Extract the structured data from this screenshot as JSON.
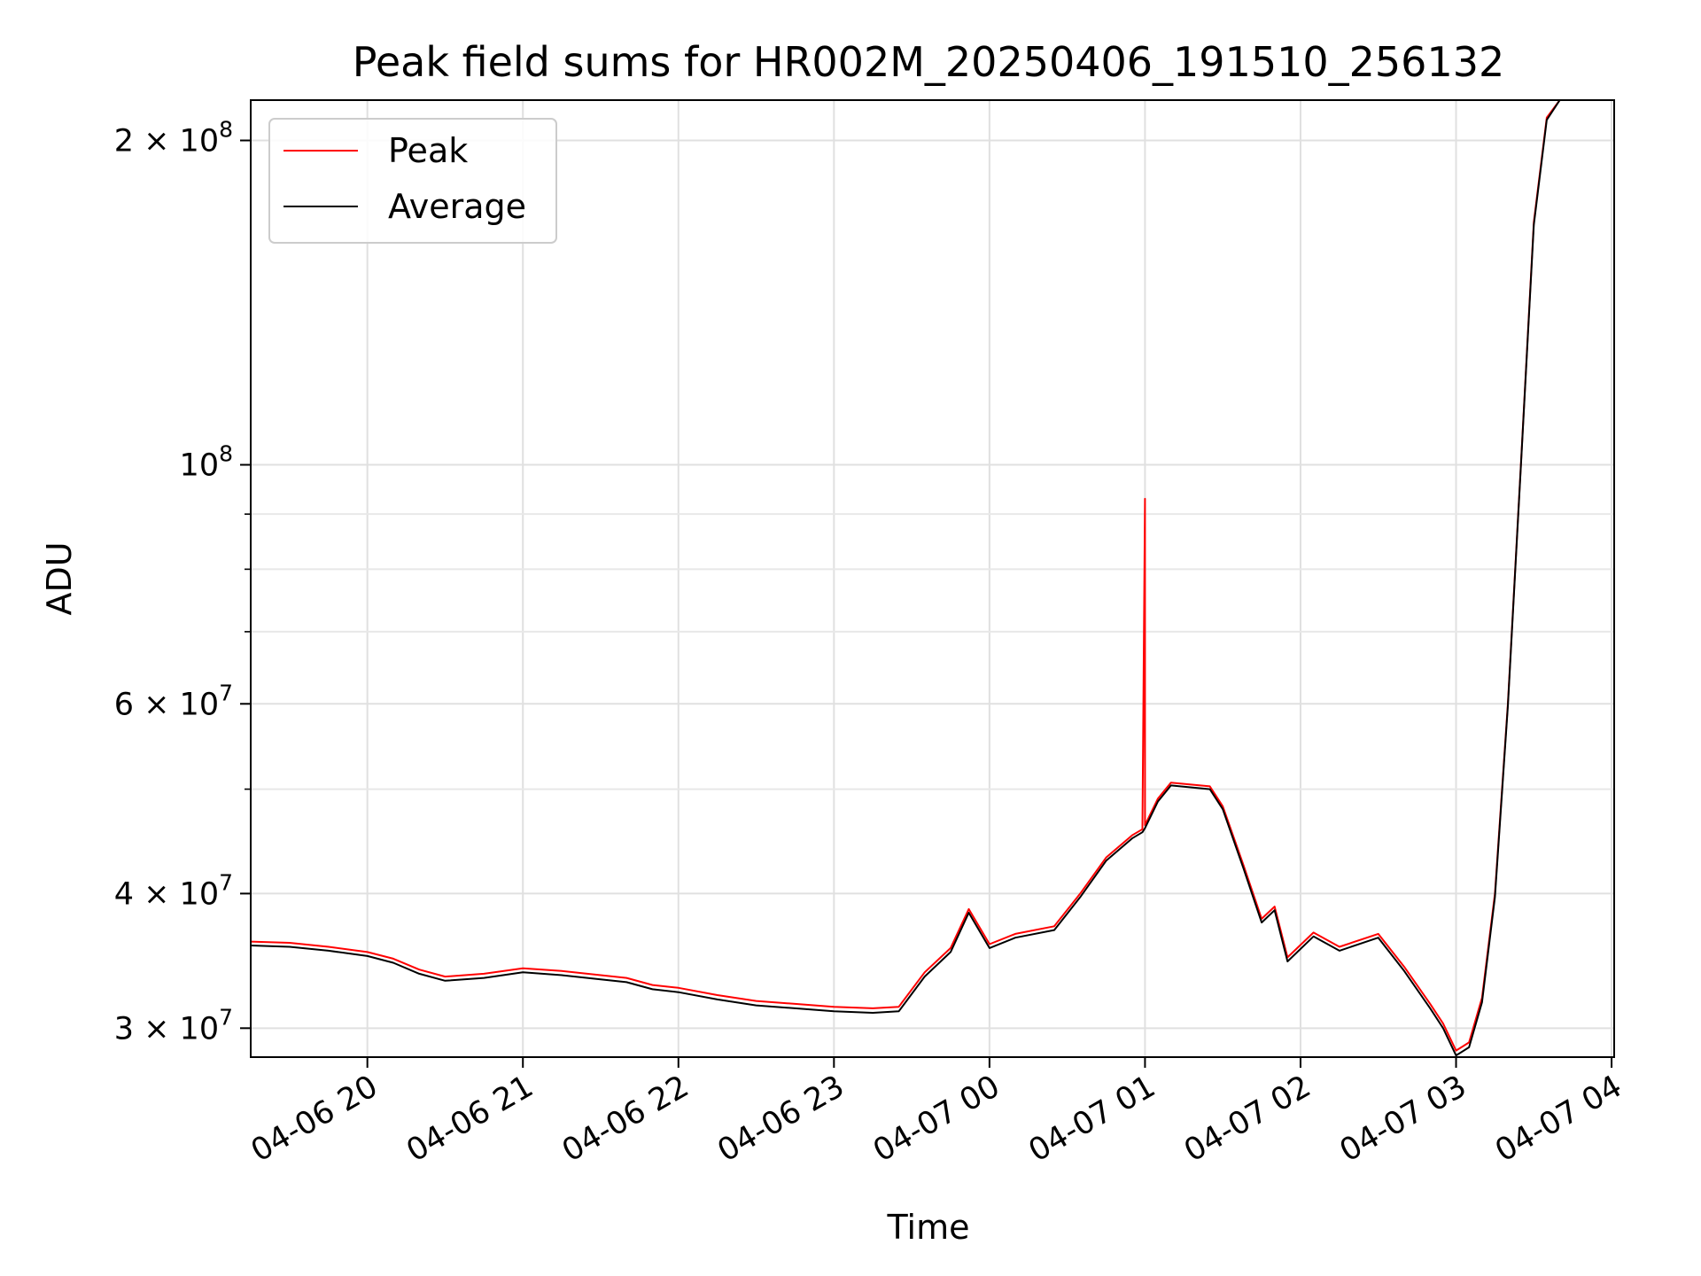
{
  "chart_data": {
    "type": "line",
    "title": "Peak field sums for HR002M_20250406_191510_256132",
    "xlabel": "Time",
    "ylabel": "ADU",
    "yscale": "log",
    "ylim": [
      28200000,
      218000000
    ],
    "xlim": [
      "2025-04-06 19:15",
      "2025-04-07 04:01"
    ],
    "grid": true,
    "legend_position": "upper-left",
    "x_ticks": [
      {
        "t": "2025-04-06 20:00",
        "label": "04-06 20"
      },
      {
        "t": "2025-04-06 21:00",
        "label": "04-06 21"
      },
      {
        "t": "2025-04-06 22:00",
        "label": "04-06 22"
      },
      {
        "t": "2025-04-06 23:00",
        "label": "04-06 23"
      },
      {
        "t": "2025-04-07 00:00",
        "label": "04-07 00"
      },
      {
        "t": "2025-04-07 01:00",
        "label": "04-07 01"
      },
      {
        "t": "2025-04-07 02:00",
        "label": "04-07 02"
      },
      {
        "t": "2025-04-07 03:00",
        "label": "04-07 03"
      },
      {
        "t": "2025-04-07 04:00",
        "label": "04-07 04"
      }
    ],
    "y_ticks": [
      {
        "value": 30000000,
        "mantissa": "3",
        "exp": "7"
      },
      {
        "value": 40000000,
        "mantissa": "4",
        "exp": "7"
      },
      {
        "value": 60000000,
        "mantissa": "6",
        "exp": "7"
      },
      {
        "value": 100000000,
        "mantissa": "",
        "exp": "8"
      },
      {
        "value": 200000000,
        "mantissa": "2",
        "exp": "8"
      }
    ],
    "y_minor_ticks": [
      50000000,
      70000000,
      80000000,
      90000000
    ],
    "series": [
      {
        "name": "Peak",
        "color": "#ff0000",
        "points": [
          [
            "2025-04-06 19:15",
            36100000
          ],
          [
            "2025-04-06 19:30",
            36000000
          ],
          [
            "2025-04-06 19:45",
            35700000
          ],
          [
            "2025-04-06 20:00",
            35300000
          ],
          [
            "2025-04-06 20:10",
            34800000
          ],
          [
            "2025-04-06 20:20",
            34000000
          ],
          [
            "2025-04-06 20:30",
            33500000
          ],
          [
            "2025-04-06 20:45",
            33700000
          ],
          [
            "2025-04-06 21:00",
            34100000
          ],
          [
            "2025-04-06 21:15",
            33900000
          ],
          [
            "2025-04-06 21:30",
            33600000
          ],
          [
            "2025-04-06 21:40",
            33400000
          ],
          [
            "2025-04-06 21:50",
            32900000
          ],
          [
            "2025-04-06 22:00",
            32700000
          ],
          [
            "2025-04-06 22:15",
            32200000
          ],
          [
            "2025-04-06 22:30",
            31800000
          ],
          [
            "2025-04-06 22:45",
            31600000
          ],
          [
            "2025-04-06 23:00",
            31400000
          ],
          [
            "2025-04-06 23:15",
            31300000
          ],
          [
            "2025-04-06 23:25",
            31400000
          ],
          [
            "2025-04-06 23:35",
            33800000
          ],
          [
            "2025-04-06 23:45",
            35600000
          ],
          [
            "2025-04-06 23:52",
            38700000
          ],
          [
            "2025-04-07 00:00",
            35900000
          ],
          [
            "2025-04-07 00:10",
            36700000
          ],
          [
            "2025-04-07 00:25",
            37300000
          ],
          [
            "2025-04-07 00:35",
            40000000
          ],
          [
            "2025-04-07 00:45",
            43200000
          ],
          [
            "2025-04-07 00:55",
            45300000
          ],
          [
            "2025-04-07 00:59",
            45900000
          ],
          [
            "2025-04-07 01:00",
            93000000
          ],
          [
            "2025-04-07 01:00",
            46300000
          ],
          [
            "2025-04-07 01:05",
            49000000
          ],
          [
            "2025-04-07 01:10",
            50700000
          ],
          [
            "2025-04-07 01:25",
            50300000
          ],
          [
            "2025-04-07 01:30",
            48200000
          ],
          [
            "2025-04-07 01:38",
            42500000
          ],
          [
            "2025-04-07 01:45",
            37900000
          ],
          [
            "2025-04-07 01:50",
            38900000
          ],
          [
            "2025-04-07 01:55",
            34900000
          ],
          [
            "2025-04-07 02:05",
            36800000
          ],
          [
            "2025-04-07 02:15",
            35700000
          ],
          [
            "2025-04-07 02:30",
            36700000
          ],
          [
            "2025-04-07 02:40",
            34200000
          ],
          [
            "2025-04-07 02:50",
            31600000
          ],
          [
            "2025-04-07 02:55",
            30300000
          ],
          [
            "2025-04-07 03:00",
            28600000
          ],
          [
            "2025-04-07 03:05",
            29100000
          ],
          [
            "2025-04-07 03:10",
            32000000
          ],
          [
            "2025-04-07 03:15",
            40000000
          ],
          [
            "2025-04-07 03:20",
            60000000
          ],
          [
            "2025-04-07 03:25",
            100000000
          ],
          [
            "2025-04-07 03:30",
            168000000
          ],
          [
            "2025-04-07 03:35",
            210000000
          ],
          [
            "2025-04-07 03:40",
            218000000
          ]
        ]
      },
      {
        "name": "Average",
        "color": "#000000",
        "points": [
          [
            "2025-04-06 19:15",
            35800000
          ],
          [
            "2025-04-06 19:30",
            35700000
          ],
          [
            "2025-04-06 19:45",
            35400000
          ],
          [
            "2025-04-06 20:00",
            35000000
          ],
          [
            "2025-04-06 20:10",
            34500000
          ],
          [
            "2025-04-06 20:20",
            33700000
          ],
          [
            "2025-04-06 20:30",
            33200000
          ],
          [
            "2025-04-06 20:45",
            33400000
          ],
          [
            "2025-04-06 21:00",
            33800000
          ],
          [
            "2025-04-06 21:15",
            33600000
          ],
          [
            "2025-04-06 21:30",
            33300000
          ],
          [
            "2025-04-06 21:40",
            33100000
          ],
          [
            "2025-04-06 21:50",
            32600000
          ],
          [
            "2025-04-06 22:00",
            32400000
          ],
          [
            "2025-04-06 22:15",
            31900000
          ],
          [
            "2025-04-06 22:30",
            31500000
          ],
          [
            "2025-04-06 22:45",
            31300000
          ],
          [
            "2025-04-06 23:00",
            31100000
          ],
          [
            "2025-04-06 23:15",
            31000000
          ],
          [
            "2025-04-06 23:25",
            31100000
          ],
          [
            "2025-04-06 23:35",
            33500000
          ],
          [
            "2025-04-06 23:45",
            35300000
          ],
          [
            "2025-04-06 23:52",
            38400000
          ],
          [
            "2025-04-07 00:00",
            35600000
          ],
          [
            "2025-04-07 00:10",
            36400000
          ],
          [
            "2025-04-07 00:25",
            37000000
          ],
          [
            "2025-04-07 00:35",
            39700000
          ],
          [
            "2025-04-07 00:45",
            42900000
          ],
          [
            "2025-04-07 00:55",
            45000000
          ],
          [
            "2025-04-07 00:59",
            45600000
          ],
          [
            "2025-04-07 01:00",
            46000000
          ],
          [
            "2025-04-07 01:05",
            48700000
          ],
          [
            "2025-04-07 01:10",
            50400000
          ],
          [
            "2025-04-07 01:25",
            50000000
          ],
          [
            "2025-04-07 01:30",
            47900000
          ],
          [
            "2025-04-07 01:38",
            42200000
          ],
          [
            "2025-04-07 01:45",
            37600000
          ],
          [
            "2025-04-07 01:50",
            38600000
          ],
          [
            "2025-04-07 01:55",
            34600000
          ],
          [
            "2025-04-07 02:05",
            36500000
          ],
          [
            "2025-04-07 02:15",
            35400000
          ],
          [
            "2025-04-07 02:30",
            36400000
          ],
          [
            "2025-04-07 02:40",
            33900000
          ],
          [
            "2025-04-07 02:50",
            31300000
          ],
          [
            "2025-04-07 02:55",
            30000000
          ],
          [
            "2025-04-07 03:00",
            28300000
          ],
          [
            "2025-04-07 03:05",
            28800000
          ],
          [
            "2025-04-07 03:10",
            31700000
          ],
          [
            "2025-04-07 03:15",
            39700000
          ],
          [
            "2025-04-07 03:20",
            59700000
          ],
          [
            "2025-04-07 03:25",
            99700000
          ],
          [
            "2025-04-07 03:30",
            167000000
          ],
          [
            "2025-04-07 03:35",
            209000000
          ],
          [
            "2025-04-07 03:40",
            218000000
          ]
        ]
      }
    ]
  }
}
